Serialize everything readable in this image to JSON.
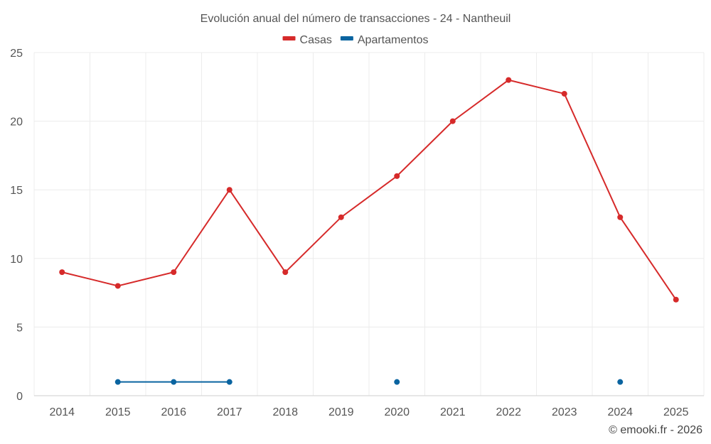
{
  "chart_data": {
    "type": "line",
    "title": "Evolución anual del número de transacciones - 24 - Nantheuil",
    "categories": [
      "2014",
      "2015",
      "2016",
      "2017",
      "2018",
      "2019",
      "2020",
      "2021",
      "2022",
      "2023",
      "2024",
      "2025"
    ],
    "series": [
      {
        "name": "Casas",
        "color": "#d62a2a",
        "values": [
          9,
          8,
          9,
          15,
          9,
          13,
          16,
          20,
          23,
          22,
          13,
          7
        ]
      },
      {
        "name": "Apartamentos",
        "color": "#0a64a0",
        "values": [
          null,
          1,
          1,
          1,
          null,
          null,
          1,
          null,
          null,
          null,
          1,
          null
        ]
      }
    ],
    "ylim": [
      0,
      25
    ],
    "yticks": [
      "0",
      "5",
      "10",
      "15",
      "20",
      "25"
    ],
    "xlabel": "",
    "ylabel": "",
    "grid": true,
    "legend_position": "top-center"
  },
  "credit": "© emooki.fr - 2026"
}
